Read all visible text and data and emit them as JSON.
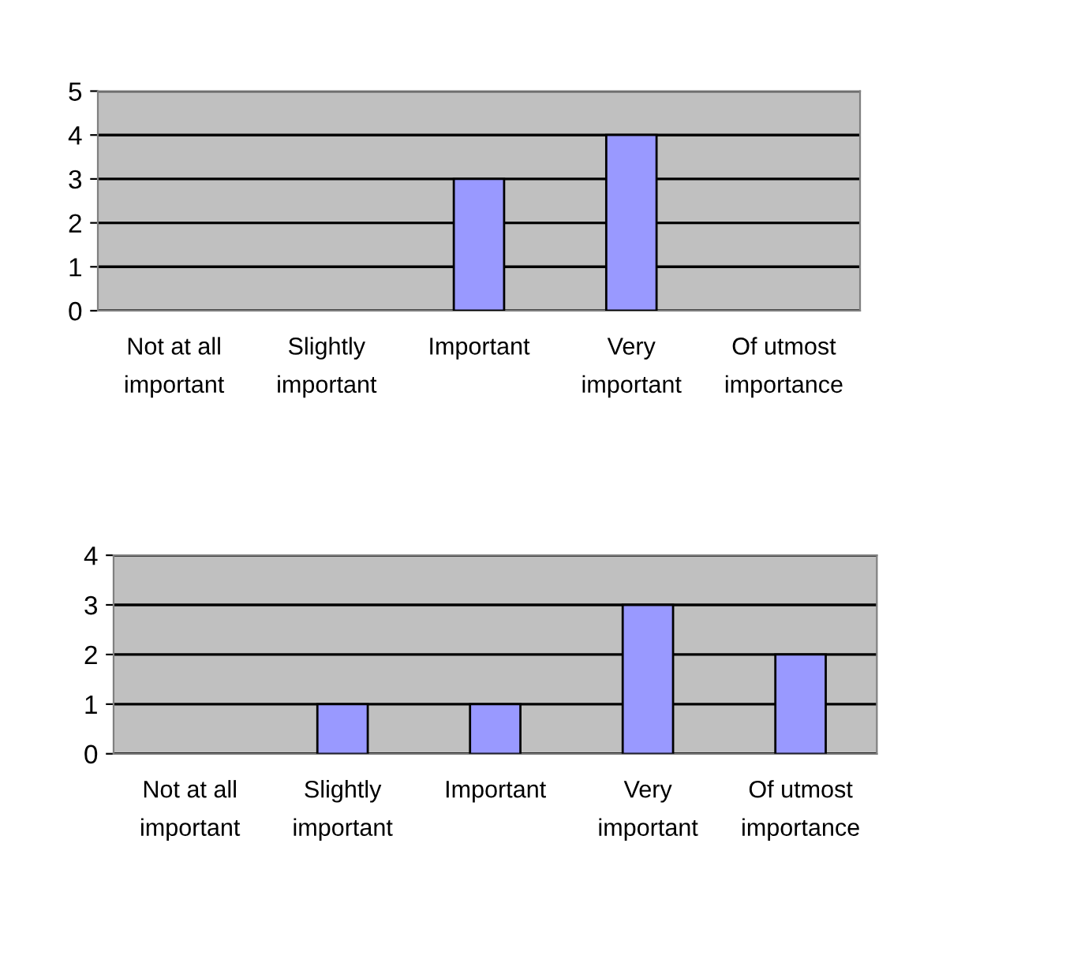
{
  "chart_data": [
    {
      "type": "bar",
      "categories": [
        "Not at all\nimportant",
        "Slightly\nimportant",
        "Important",
        "Very\nimportant",
        "Of utmost\nimportance"
      ],
      "values": [
        0,
        0,
        3,
        4,
        0
      ],
      "color": "#9999ff",
      "ylim": [
        0,
        5
      ],
      "yticks": [
        0,
        1,
        2,
        3,
        4,
        5
      ],
      "grid": "y",
      "legend": false
    },
    {
      "type": "bar",
      "categories": [
        "Not at all\nimportant",
        "Slightly\nimportant",
        "Important",
        "Very\nimportant",
        "Of utmost\nimportance"
      ],
      "values": [
        0,
        1,
        1,
        3,
        2
      ],
      "color": "#9999ff",
      "ylim": [
        0,
        4
      ],
      "yticks": [
        0,
        1,
        2,
        3,
        4
      ],
      "grid": "y",
      "legend": false
    }
  ]
}
